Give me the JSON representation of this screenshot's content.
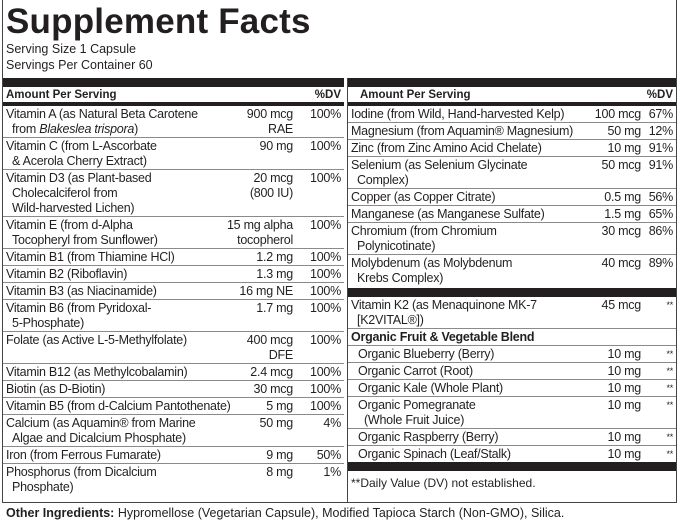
{
  "title": "Supplement Facts",
  "serving_size": "Serving Size 1 Capsule",
  "servings_per_container": "Servings Per Container 60",
  "header": {
    "amount_per_serving": "Amount Per Serving",
    "dv": "%DV"
  },
  "left_rows": [
    {
      "name": "Vitamin A (as Natural Beta Carotene",
      "name2": "from Blakeslea trispora)",
      "amount": "900 mcg",
      "amount2": "RAE",
      "dv": "100%"
    },
    {
      "name": "Vitamin C (from L-Ascorbate",
      "name2": "& Acerola Cherry Extract)",
      "amount": "90 mg",
      "amount2": "",
      "dv": "100%"
    },
    {
      "name": "Vitamin D3 (as Plant-based",
      "name2": "Cholecalciferol from",
      "name3": "Wild-harvested Lichen)",
      "amount": "20 mcg",
      "amount2": "(800 IU)",
      "dv": "100%"
    },
    {
      "name": "Vitamin E (from d-Alpha",
      "name2": "Tocopheryl from Sunflower)",
      "amount": "15 mg alpha",
      "amount2": "tocopherol",
      "dv": "100%"
    },
    {
      "name": "Vitamin B1 (from Thiamine HCl)",
      "amount": "1.2 mg",
      "dv": "100%"
    },
    {
      "name": "Vitamin B2 (Riboflavin)",
      "amount": "1.3 mg",
      "dv": "100%"
    },
    {
      "name": "Vitamin B3 (as Niacinamide)",
      "amount": "16 mg NE",
      "dv": "100%"
    },
    {
      "name": "Vitamin B6 (from Pyridoxal-",
      "name2": "5-Phosphate)",
      "amount": "1.7 mg",
      "dv": "100%"
    },
    {
      "name": "Folate (as Active L-5-Methylfolate)",
      "amount": "400 mcg",
      "amount2": "DFE",
      "dv": "100%"
    },
    {
      "name": "Vitamin B12 (as Methylcobalamin)",
      "amount": "2.4 mcg",
      "dv": "100%"
    },
    {
      "name": "Biotin (as D-Biotin)",
      "amount": "30 mcg",
      "dv": "100%"
    },
    {
      "name": "Vitamin B5 (from d-Calcium Pantothenate)",
      "amount": "5 mg",
      "dv": "100%"
    },
    {
      "name": "Calcium (as Aquamin® from Marine",
      "name2": "Algae and Dicalcium Phosphate)",
      "amount": "50 mg",
      "dv": "4%"
    },
    {
      "name": "Iron (from Ferrous Fumarate)",
      "amount": "9 mg",
      "dv": "50%"
    },
    {
      "name": "Phosphorus (from Dicalcium",
      "name2": "Phosphate)",
      "amount": "8 mg",
      "dv": "1%"
    }
  ],
  "right_rows": [
    {
      "name": "Iodine (from Wild, Hand-harvested Kelp)",
      "amount": "100 mcg",
      "dv": "67%"
    },
    {
      "name": "Magnesium (from Aquamin® Magnesium)",
      "amount": "50 mg",
      "dv": "12%"
    },
    {
      "name": "Zinc (from Zinc Amino Acid Chelate)",
      "amount": "10 mg",
      "dv": "91%"
    },
    {
      "name": "Selenium (as Selenium Glycinate",
      "name2": "Complex)",
      "amount": "50 mcg",
      "dv": "91%"
    },
    {
      "name": "Copper (as Copper Citrate)",
      "amount": "0.5 mg",
      "dv": "56%"
    },
    {
      "name": "Manganese (as Manganese Sulfate)",
      "amount": "1.5 mg",
      "dv": "65%"
    },
    {
      "name": "Chromium (from Chromium",
      "name2": "Polynicotinate)",
      "amount": "30 mcg",
      "dv": "86%"
    },
    {
      "name": "Molybdenum (as Molybdenum",
      "name2": "Krebs Complex)",
      "amount": "40 mcg",
      "dv": "89%"
    }
  ],
  "k2": {
    "name": "Vitamin K2 (as Menaquinone MK-7",
    "name2": "[K2VITAL®])",
    "amount": "45 mcg",
    "dv": "**"
  },
  "blend": {
    "title": "Organic Fruit & Vegetable Blend",
    "items": [
      {
        "name": "Organic Blueberry (Berry)",
        "amount": "10 mg",
        "dv": "**"
      },
      {
        "name": "Organic Carrot (Root)",
        "amount": "10 mg",
        "dv": "**"
      },
      {
        "name": "Organic Kale (Whole Plant)",
        "amount": "10 mg",
        "dv": "**"
      },
      {
        "name": "Organic Pomegranate",
        "name2": "(Whole Fruit Juice)",
        "amount": "10 mg",
        "dv": "**"
      },
      {
        "name": "Organic Raspberry (Berry)",
        "amount": "10 mg",
        "dv": "**"
      },
      {
        "name": "Organic Spinach (Leaf/Stalk)",
        "amount": "10 mg",
        "dv": "**"
      }
    ]
  },
  "footnote": "**Daily Value (DV) not established.",
  "other_ingredients": {
    "label": "Other Ingredients:",
    "text": " Hypromellose (Vegetarian Capsule), Modified Tapioca Starch (Non-GMO), Silica."
  }
}
